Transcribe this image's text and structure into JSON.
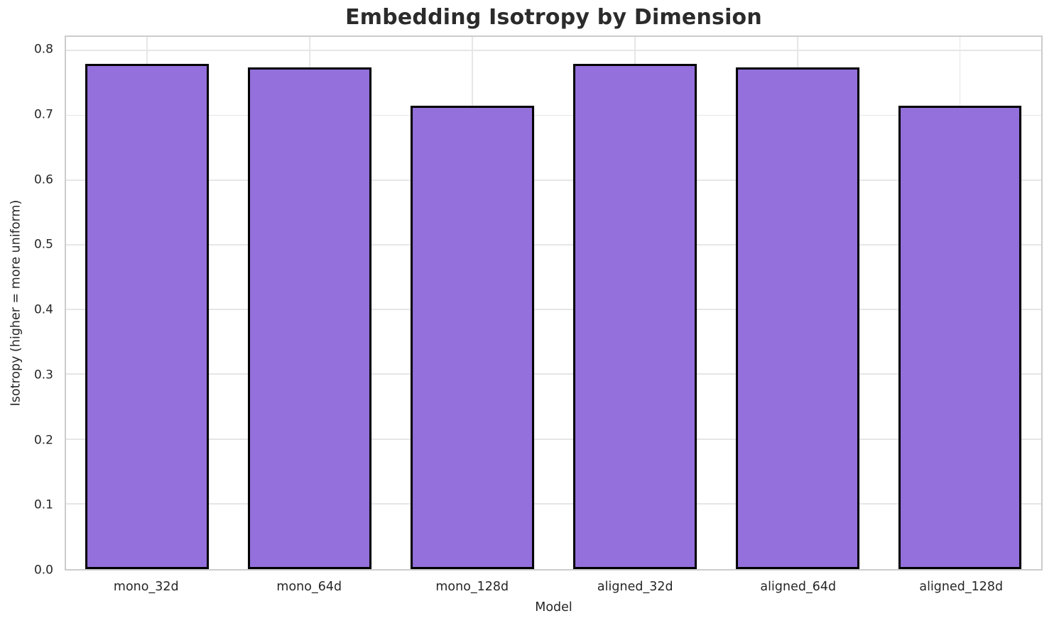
{
  "chart_data": {
    "type": "bar",
    "title": "Embedding Isotropy by Dimension",
    "xlabel": "Model",
    "ylabel": "Isotropy (higher = more uniform)",
    "categories": [
      "mono_32d",
      "mono_64d",
      "mono_128d",
      "aligned_32d",
      "aligned_64d",
      "aligned_128d"
    ],
    "values": [
      0.78,
      0.775,
      0.716,
      0.78,
      0.775,
      0.716
    ],
    "ylim": [
      0,
      0.822
    ],
    "yticks": [
      0,
      0.1,
      0.2,
      0.3,
      0.4,
      0.5,
      0.6,
      0.7,
      0.8
    ],
    "ytick_labels": [
      "0.0",
      "0.1",
      "0.2",
      "0.3",
      "0.4",
      "0.5",
      "0.6",
      "0.7",
      "0.8"
    ],
    "grid": true,
    "grid_axes": "both",
    "legend": false,
    "bar_width_fraction": 0.76,
    "bar_color": "#9370DB",
    "bar_edge_color": "#000000"
  },
  "colors": {
    "background": "#ffffff",
    "grid": "#e6e6e6",
    "spine": "#cccccc",
    "tick_text": "#262626",
    "title_text": "#2b2b2b"
  }
}
